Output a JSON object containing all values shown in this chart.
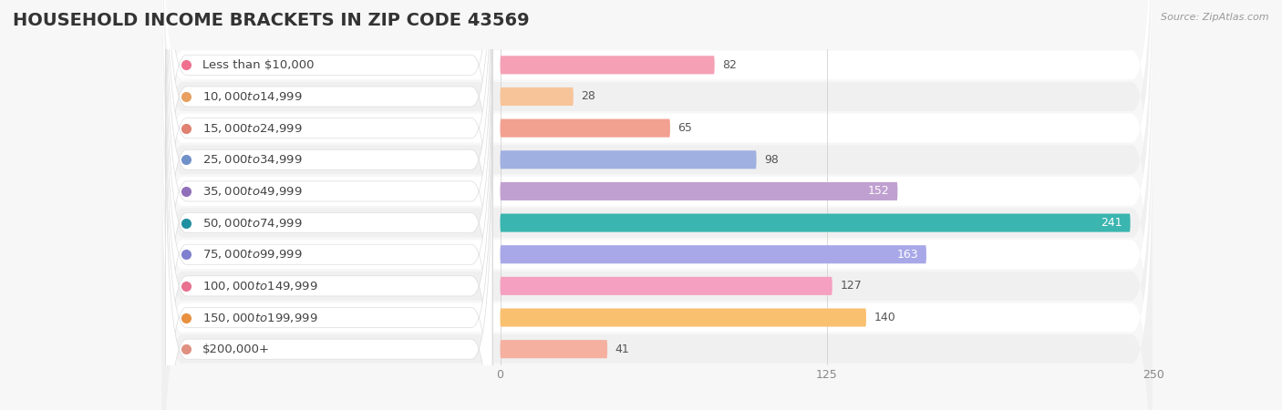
{
  "title": "HOUSEHOLD INCOME BRACKETS IN ZIP CODE 43569",
  "source": "Source: ZipAtlas.com",
  "categories": [
    "Less than $10,000",
    "$10,000 to $14,999",
    "$15,000 to $24,999",
    "$25,000 to $34,999",
    "$35,000 to $49,999",
    "$50,000 to $74,999",
    "$75,000 to $99,999",
    "$100,000 to $149,999",
    "$150,000 to $199,999",
    "$200,000+"
  ],
  "values": [
    82,
    28,
    65,
    98,
    152,
    241,
    163,
    127,
    140,
    41
  ],
  "bar_colors": [
    "#f5a0b5",
    "#f7c49a",
    "#f2a090",
    "#a0b0e0",
    "#c0a0d0",
    "#3ab5b0",
    "#a8a8e8",
    "#f5a0c0",
    "#f9c070",
    "#f5b0a0"
  ],
  "dot_colors": [
    "#f07090",
    "#e8a060",
    "#e08070",
    "#7090c8",
    "#9070b8",
    "#2090a0",
    "#8080d0",
    "#e87090",
    "#e89040",
    "#e09080"
  ],
  "label_text_colors": [
    "dark",
    "dark",
    "dark",
    "dark",
    "dark",
    "dark",
    "dark",
    "dark",
    "dark",
    "dark"
  ],
  "value_in_bar": [
    false,
    false,
    false,
    false,
    true,
    true,
    true,
    false,
    false,
    false
  ],
  "xlim": [
    -130,
    250
  ],
  "data_xlim": [
    0,
    250
  ],
  "xticks": [
    0,
    125,
    250
  ],
  "background_color": "#f7f7f7",
  "row_bg_even": "#ffffff",
  "row_bg_odd": "#f0f0f0",
  "title_fontsize": 14,
  "title_color": "#333333",
  "label_fontsize": 9.5,
  "value_fontsize": 9
}
